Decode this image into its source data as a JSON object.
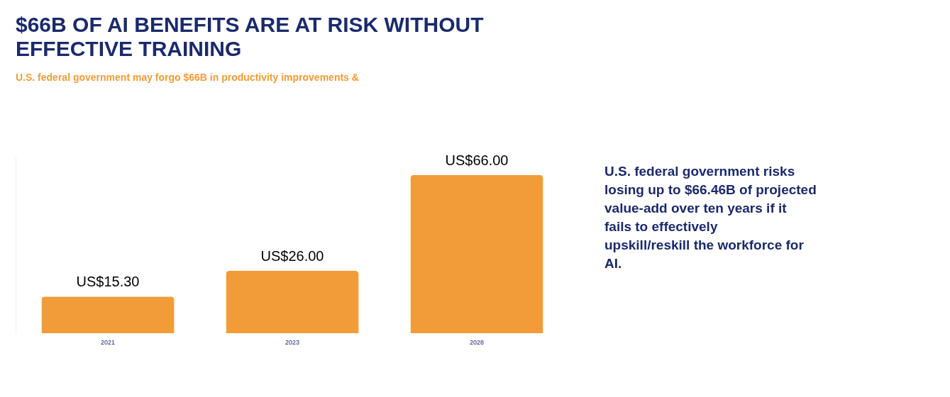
{
  "chart_data": {
    "type": "bar",
    "title": "$66B OF AI BENEFITS ARE AT RISK WITHOUT EFFECTIVE TRAINING",
    "subtitle": "U.S. federal government may forgo $66B in productivity improvements &",
    "categories": [
      "2021",
      "2023",
      "2028"
    ],
    "values": [
      15.3,
      26.0,
      66.0
    ],
    "value_labels": [
      "US$15.30",
      "US$26.00",
      "US$66.00"
    ],
    "color": "#f19c38",
    "grid": false,
    "annotations": [
      "U.S. federal government risks losing up to $66.46B of projected value-add over ten years if it fails to effectively upskill/reskill the workforce for AI."
    ]
  }
}
